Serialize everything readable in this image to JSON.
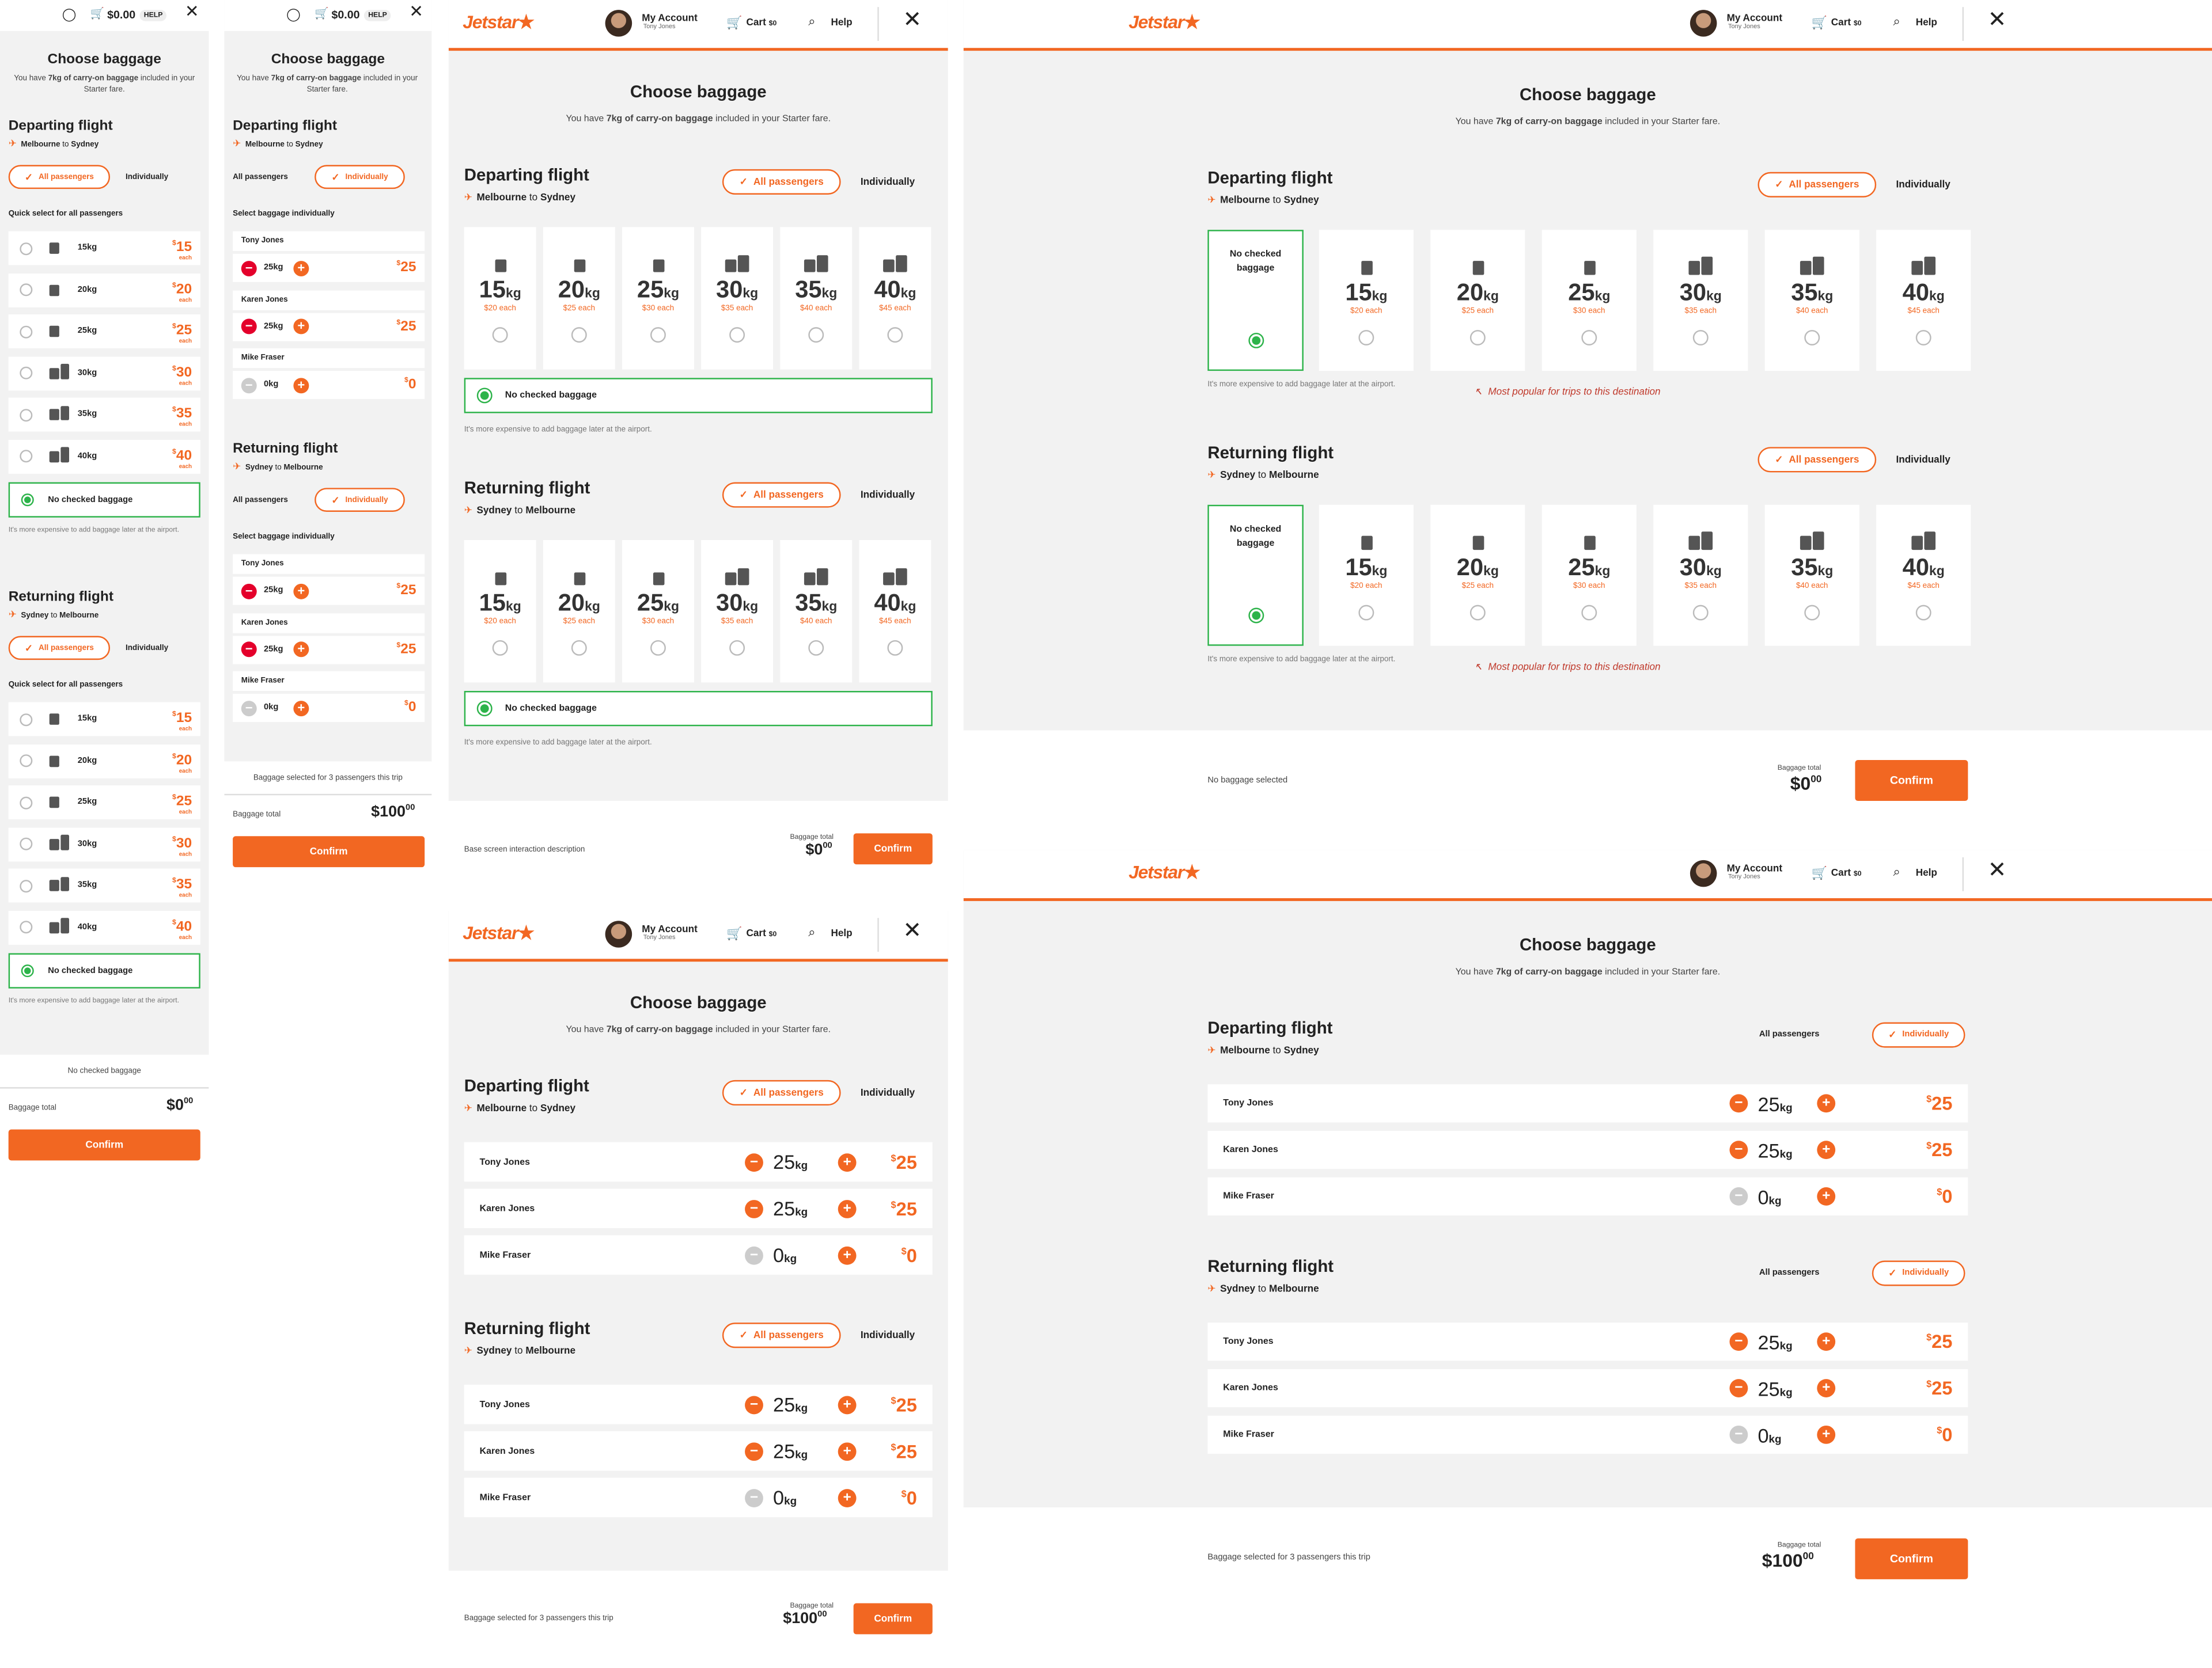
{
  "common": {
    "title": "Choose baggage",
    "subtitle_pre": "You have ",
    "subtitle_bold": "7kg of carry-on baggage",
    "subtitle_post": " included in your Starter fare.",
    "departing": "Departing flight",
    "returning": "Returning flight",
    "dep_from": "Melbourne",
    "dep_to": "Sydney",
    "ret_from": "Sydney",
    "ret_to": "Melbourne",
    "to": "to",
    "all_passengers": "All passengers",
    "individually": "Individually",
    "quick_select": "Quick select for all passengers",
    "select_individually": "Select baggage individually",
    "no_checked": "No checked baggage",
    "no_checked_short": "No checked\nbaggage",
    "later_note": "It's more expensive to add baggage later at the airport.",
    "baggage_total": "Baggage total",
    "confirm": "Confirm",
    "selected_3": "Baggage selected for 3 passengers this trip",
    "no_selected": "No baggage selected",
    "base_desc": "Base screen interaction description",
    "popular": "Most popular for trips to this destination",
    "help_short": "HELP",
    "cart_short": "$0.00",
    "brand": "Jetstar",
    "my_account": "My Account",
    "user": "Tony Jones",
    "cart": "Cart",
    "cart_val": "$0",
    "help": "Help"
  },
  "options": [
    {
      "kg": "15",
      "unit": "kg",
      "price": "15",
      "each": "$20 each",
      "mobile_each": "each",
      "bags": 1
    },
    {
      "kg": "20",
      "unit": "kg",
      "price": "20",
      "each": "$25 each",
      "mobile_each": "each",
      "bags": 1
    },
    {
      "kg": "25",
      "unit": "kg",
      "price": "25",
      "each": "$30 each",
      "mobile_each": "each",
      "bags": 1
    },
    {
      "kg": "30",
      "unit": "kg",
      "price": "30",
      "each": "$35 each",
      "mobile_each": "each",
      "bags": 2
    },
    {
      "kg": "35",
      "unit": "kg",
      "price": "35",
      "each": "$40 each",
      "mobile_each": "each",
      "bags": 2
    },
    {
      "kg": "40",
      "unit": "kg",
      "price": "40",
      "each": "$45 each",
      "mobile_each": "each",
      "bags": 2
    }
  ],
  "passengers": [
    {
      "name": "Tony Jones",
      "kg": "25",
      "unit": "kg",
      "price": "25",
      "disabled": false
    },
    {
      "name": "Karen Jones",
      "kg": "25",
      "unit": "kg",
      "price": "25",
      "disabled": false
    },
    {
      "name": "Mike Fraser",
      "kg": "0",
      "unit": "kg",
      "price": "0",
      "disabled": true
    }
  ],
  "totals": {
    "zero_dollars": "0",
    "zero_cents": "00",
    "hundred_dollars": "100",
    "hundred_cents": "00"
  },
  "colors": {
    "accent": "#f26722",
    "success": "#2db34a",
    "danger": "#e4002b",
    "bg": "#f2f2f2"
  }
}
